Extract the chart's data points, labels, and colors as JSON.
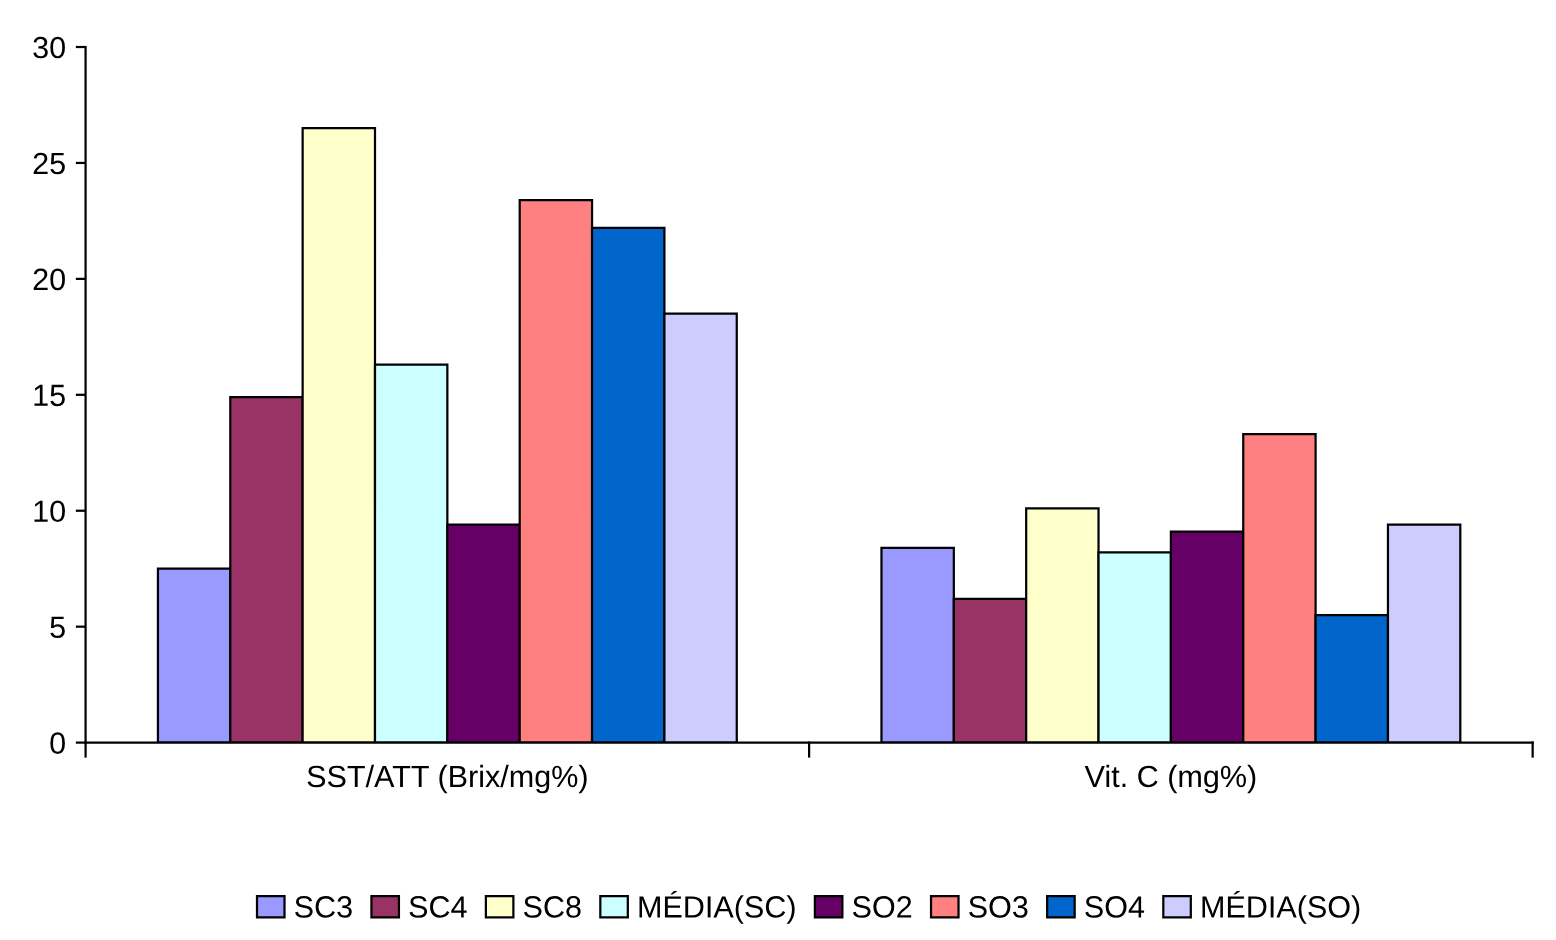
{
  "chart_data": {
    "type": "bar",
    "categories": [
      "SST/ATT (Brix/mg%)",
      "Vit. C (mg%)"
    ],
    "series": [
      {
        "name": "SC3",
        "color": "#9999ff",
        "values": [
          7.5,
          8.4
        ]
      },
      {
        "name": "SC4",
        "color": "#993366",
        "values": [
          14.9,
          6.2
        ]
      },
      {
        "name": "SC8",
        "color": "#ffffcc",
        "values": [
          26.5,
          10.1
        ]
      },
      {
        "name": "MÉDIA(SC)",
        "color": "#ccffff",
        "values": [
          16.3,
          8.2
        ]
      },
      {
        "name": "SO2",
        "color": "#660066",
        "values": [
          9.4,
          9.1
        ]
      },
      {
        "name": "SO3",
        "color": "#ff8080",
        "values": [
          23.4,
          13.3
        ]
      },
      {
        "name": "SO4",
        "color": "#0066cc",
        "values": [
          22.2,
          5.5
        ]
      },
      {
        "name": "MÉDIA(SO)",
        "color": "#ccccff",
        "values": [
          18.5,
          9.4
        ]
      }
    ],
    "ylim": [
      0,
      30
    ],
    "yticks": [
      0,
      5,
      10,
      15,
      20,
      25,
      30
    ],
    "grid": false,
    "legend": "bottom"
  }
}
